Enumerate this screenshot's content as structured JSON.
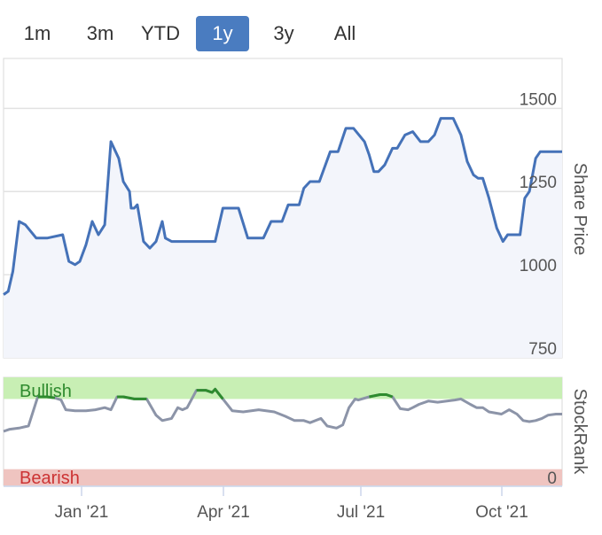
{
  "range_buttons": [
    {
      "label": "1m",
      "active": false
    },
    {
      "label": "3m",
      "active": false
    },
    {
      "label": "YTD",
      "active": false
    },
    {
      "label": "1y",
      "active": true
    },
    {
      "label": "3y",
      "active": false
    },
    {
      "label": "All",
      "active": false
    }
  ],
  "colors": {
    "price_line": "#4572b8",
    "rank_line": "#8c94a8",
    "bullish_zone": "#c8efb4",
    "bearish_zone": "#efc4c0",
    "bullish_line": "#2e8b2e",
    "bullish_text": "#2e8b2e",
    "bearish_text": "#cc3333",
    "active_button": "#4a7cc0"
  },
  "chart_data": [
    {
      "type": "line",
      "ylabel": "Share Price",
      "ylim": [
        750,
        1650
      ],
      "yticks": [
        "750",
        "1000",
        "1250",
        "1500"
      ],
      "x_range": [
        "2020-11-12",
        "2021-11-06"
      ],
      "xticks": [
        "Jan '21",
        "Apr '21",
        "Jul '21",
        "Oct '21"
      ],
      "grid": true,
      "series": [
        {
          "x": [
            "2020-11-12",
            "2020-11-15",
            "2020-11-18",
            "2020-11-22",
            "2020-11-26",
            "2020-12-03",
            "2020-12-10",
            "2020-12-20",
            "2020-12-22",
            "2020-12-24",
            "2020-12-28",
            "2020-12-31",
            "2021-01-04",
            "2021-01-08",
            "2021-01-12",
            "2021-01-16",
            "2021-01-20",
            "2021-01-25",
            "2021-01-28",
            "2021-02-01",
            "2021-02-02",
            "2021-02-03",
            "2021-02-04",
            "2021-02-06",
            "2021-02-10",
            "2021-02-14",
            "2021-02-18",
            "2021-02-22",
            "2021-02-24",
            "2021-02-28",
            "2021-03-03",
            "2021-03-08",
            "2021-03-13",
            "2021-03-18",
            "2021-03-22",
            "2021-03-25",
            "2021-03-28",
            "2021-04-02",
            "2021-04-08",
            "2021-04-12",
            "2021-04-18",
            "2021-04-28",
            "2021-05-03",
            "2021-05-06",
            "2021-05-10",
            "2021-05-14",
            "2021-05-18",
            "2021-05-21",
            "2021-05-24",
            "2021-05-28",
            "2021-06-03",
            "2021-06-10",
            "2021-06-15",
            "2021-06-20",
            "2021-06-25",
            "2021-07-02",
            "2021-07-05",
            "2021-07-08",
            "2021-07-11",
            "2021-07-15",
            "2021-07-20",
            "2021-07-23",
            "2021-07-28",
            "2021-08-02",
            "2021-08-07",
            "2021-08-12",
            "2021-08-16",
            "2021-08-20",
            "2021-08-24",
            "2021-08-28",
            "2021-09-02",
            "2021-09-06",
            "2021-09-10",
            "2021-09-13",
            "2021-09-16",
            "2021-09-20",
            "2021-09-25",
            "2021-09-29",
            "2021-10-02",
            "2021-10-06",
            "2021-10-10",
            "2021-10-13",
            "2021-10-16",
            "2021-10-20",
            "2021-10-23",
            "2021-10-27",
            "2021-11-01",
            "2021-11-03",
            "2021-11-05",
            "2021-11-06"
          ],
          "values": [
            940,
            950,
            1010,
            1160,
            1150,
            1110,
            1110,
            1120,
            1080,
            1040,
            1030,
            1040,
            1090,
            1160,
            1120,
            1150,
            1400,
            1350,
            1280,
            1250,
            1200,
            1200,
            1200,
            1210,
            1100,
            1080,
            1100,
            1160,
            1110,
            1100,
            1100,
            1100,
            1100,
            1100,
            1100,
            1100,
            1100,
            1200,
            1200,
            1200,
            1110,
            1110,
            1160,
            1160,
            1160,
            1210,
            1210,
            1210,
            1260,
            1280,
            1280,
            1370,
            1370,
            1440,
            1440,
            1400,
            1360,
            1310,
            1310,
            1330,
            1380,
            1380,
            1420,
            1430,
            1400,
            1400,
            1420,
            1470,
            1470,
            1470,
            1420,
            1340,
            1300,
            1290,
            1290,
            1230,
            1140,
            1100,
            1120,
            1120,
            1120,
            1230,
            1250,
            1350,
            1370,
            1370,
            1370,
            1370,
            1370,
            1370
          ]
        }
      ]
    },
    {
      "type": "line",
      "ylabel": "StockRank",
      "ylim": [
        0,
        100
      ],
      "yticks": [
        "0"
      ],
      "zones": [
        {
          "label": "Bullish",
          "from": 80,
          "to": 100
        },
        {
          "label": "Bearish",
          "from": 0,
          "to": 15
        }
      ],
      "series": [
        {
          "x": [
            "2020-11-12",
            "2020-11-16",
            "2020-11-22",
            "2020-11-28",
            "2020-12-04",
            "2020-12-10",
            "2020-12-15",
            "2020-12-19",
            "2020-12-22",
            "2020-12-28",
            "2021-01-04",
            "2021-01-10",
            "2021-01-16",
            "2021-01-20",
            "2021-01-24",
            "2021-01-28",
            "2021-02-04",
            "2021-02-12",
            "2021-02-18",
            "2021-02-22",
            "2021-02-28",
            "2021-03-04",
            "2021-03-07",
            "2021-03-10",
            "2021-03-16",
            "2021-03-22",
            "2021-03-26",
            "2021-03-28",
            "2021-04-02",
            "2021-04-08",
            "2021-04-15",
            "2021-04-25",
            "2021-05-05",
            "2021-05-12",
            "2021-05-18",
            "2021-05-24",
            "2021-05-28",
            "2021-06-04",
            "2021-06-08",
            "2021-06-14",
            "2021-06-18",
            "2021-06-22",
            "2021-06-26",
            "2021-06-28",
            "2021-07-05",
            "2021-07-12",
            "2021-07-16",
            "2021-07-20",
            "2021-07-25",
            "2021-07-30",
            "2021-08-02",
            "2021-08-06",
            "2021-08-12",
            "2021-08-18",
            "2021-08-24",
            "2021-08-29",
            "2021-09-02",
            "2021-09-08",
            "2021-09-12",
            "2021-09-16",
            "2021-09-20",
            "2021-09-28",
            "2021-10-03",
            "2021-10-08",
            "2021-10-12",
            "2021-10-16",
            "2021-10-20",
            "2021-10-24",
            "2021-10-28",
            "2021-11-02",
            "2021-11-06"
          ],
          "values": [
            50,
            52,
            53,
            55,
            82,
            82,
            81,
            79,
            70,
            69,
            69,
            70,
            72,
            70,
            82,
            82,
            80,
            80,
            65,
            60,
            62,
            72,
            70,
            72,
            88,
            88,
            86,
            89,
            80,
            69,
            68,
            70,
            68,
            64,
            60,
            60,
            58,
            62,
            55,
            53,
            56,
            72,
            80,
            79,
            82,
            84,
            84,
            82,
            71,
            70,
            72,
            75,
            78,
            77,
            78,
            79,
            80,
            75,
            72,
            72,
            68,
            66,
            70,
            66,
            60,
            59,
            60,
            62,
            65,
            66,
            66
          ]
        }
      ]
    }
  ]
}
